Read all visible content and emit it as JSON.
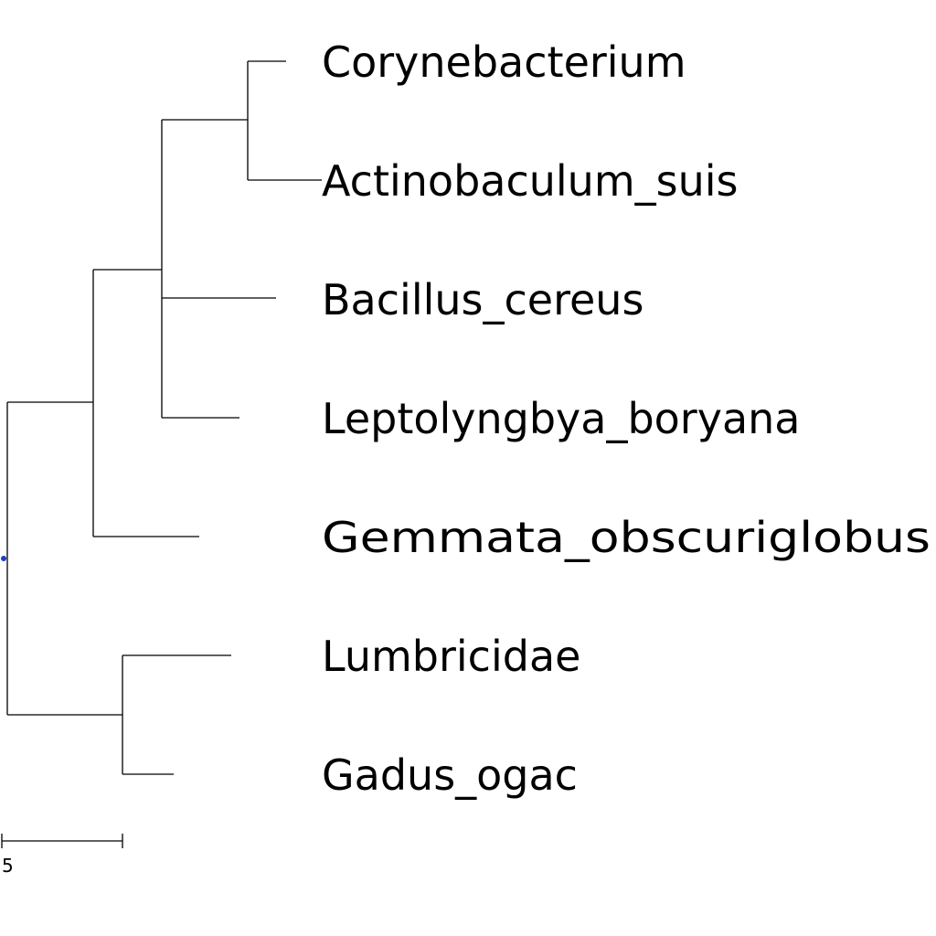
{
  "tree": {
    "root_marker_color": "#1f3fbf",
    "line_color": "#000000",
    "taxa": [
      "Corynebacterium",
      "Actinobaculum_suis",
      "Bacillus_cereus",
      "Leptolyngbya_boryana",
      "Gemmata_obscuriglobus",
      "Lumbricidae",
      "Gadus_ogac"
    ],
    "scale_bar": {
      "label": "5",
      "length": 5
    }
  }
}
